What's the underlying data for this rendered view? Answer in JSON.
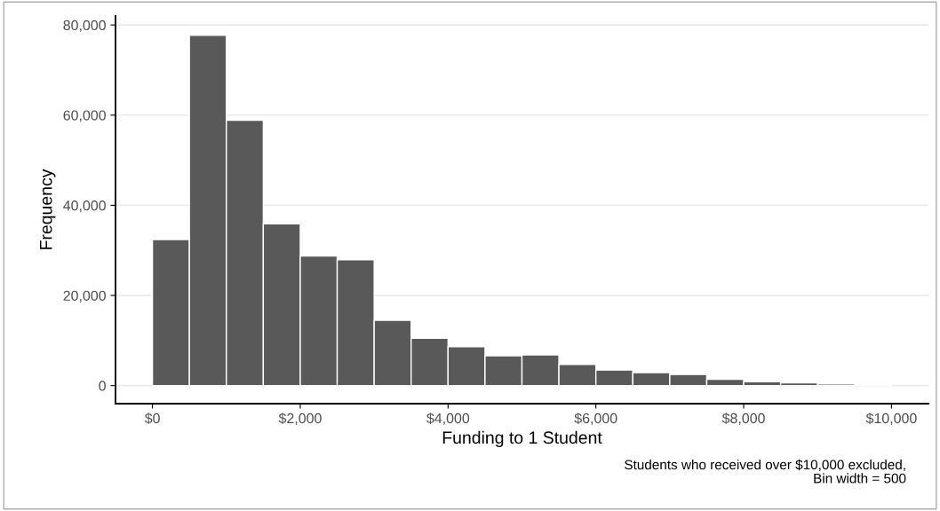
{
  "chart_data": {
    "type": "histogram",
    "xlabel": "Funding to 1 Student",
    "ylabel": "Frequency",
    "bins": [
      0,
      500,
      1000,
      1500,
      2000,
      2500,
      3000,
      3500,
      4000,
      4500,
      5000,
      5500,
      6000,
      6500,
      7000,
      7500,
      8000,
      8500,
      9000,
      9500,
      10000
    ],
    "values": [
      32400,
      77700,
      58850,
      35900,
      28760,
      27900,
      14480,
      10500,
      8650,
      6620,
      6830,
      4720,
      3450,
      2890,
      2460,
      1410,
      850,
      630,
      350,
      150
    ],
    "color": "#595959",
    "xlim": [
      -500,
      10500
    ],
    "xticks": [
      {
        "value": 0,
        "label": "$0"
      },
      {
        "value": 2000,
        "label": "$2,000"
      },
      {
        "value": 4000,
        "label": "$4,000"
      },
      {
        "value": 6000,
        "label": "$6,000"
      },
      {
        "value": 8000,
        "label": "$8,000"
      },
      {
        "value": 10000,
        "label": "$10,000"
      }
    ],
    "ylim": [
      -4000,
      82000
    ],
    "yticks": [
      {
        "value": 0,
        "label": "0"
      },
      {
        "value": 20000,
        "label": "20,000"
      },
      {
        "value": 40000,
        "label": "40,000"
      },
      {
        "value": 60000,
        "label": "60,000"
      },
      {
        "value": 80000,
        "label": "80,000"
      }
    ],
    "grid": "y",
    "annotations": [
      "Students who received over $10,000 excluded,\nBin width = 500"
    ]
  }
}
